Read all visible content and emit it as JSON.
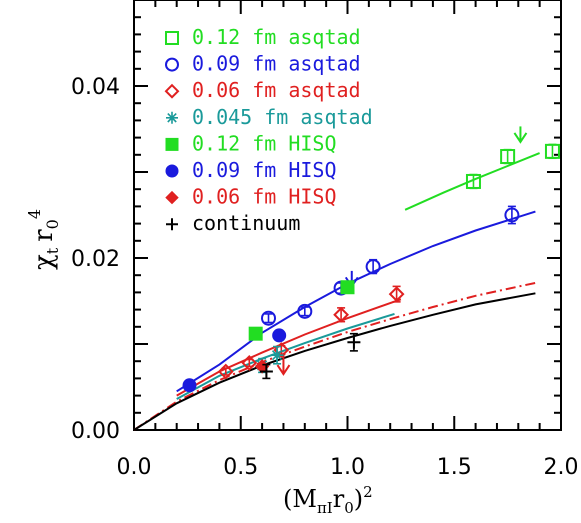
{
  "chart_data": {
    "type": "scatter",
    "xlabel": "(M_{πI} r_0)^2",
    "ylabel": "χ_t r_0^4",
    "xlim": [
      0.0,
      2.0
    ],
    "ylim": [
      0.0,
      0.05
    ],
    "x_ticks": [
      "0.0",
      "0.5",
      "1.0",
      "1.5",
      "2.0"
    ],
    "y_ticks": [
      "0.00",
      "0.02",
      "0.04"
    ],
    "x_tick_values": [
      0.0,
      0.5,
      1.0,
      1.5,
      2.0
    ],
    "y_tick_values": [
      0.0,
      0.02,
      0.04
    ],
    "legend_position": "top-left",
    "series": [
      {
        "name": "0.12 fm asqtad",
        "color": "#22dd22",
        "marker": "open-square",
        "x": [
          1.59,
          1.75,
          1.96
        ],
        "y": [
          0.0289,
          0.0318,
          0.0324
        ],
        "err": [
          0.0008,
          0.0008,
          0.0008
        ]
      },
      {
        "name": "0.09 fm asqtad",
        "color": "#1a1add",
        "marker": "open-circle",
        "x": [
          0.63,
          0.8,
          0.97,
          1.12,
          1.77
        ],
        "y": [
          0.013,
          0.0138,
          0.0165,
          0.019,
          0.025
        ],
        "err": [
          0.0005,
          0.0005,
          0.0006,
          0.0008,
          0.001
        ]
      },
      {
        "name": "0.06 fm asqtad",
        "color": "#e02020",
        "marker": "open-diamond",
        "x": [
          0.43,
          0.54,
          0.69,
          0.97,
          1.23
        ],
        "y": [
          0.0068,
          0.0078,
          0.0093,
          0.0134,
          0.0158
        ],
        "err": [
          0.0004,
          0.0004,
          0.0005,
          0.0008,
          0.0009
        ]
      },
      {
        "name": "0.045 fm asqtad",
        "color": "#1a9a9a",
        "marker": "star",
        "x": [
          0.6,
          0.67
        ],
        "y": [
          0.0075,
          0.0087
        ],
        "err": [
          0.0008,
          0.001
        ]
      },
      {
        "name": "0.12 fm HISQ",
        "color": "#22dd22",
        "marker": "filled-square",
        "x": [
          0.57,
          1.0
        ],
        "y": [
          0.0112,
          0.0166
        ],
        "err": [
          0.0003,
          0.0004
        ]
      },
      {
        "name": "0.09 fm HISQ",
        "color": "#1a1add",
        "marker": "filled-circle",
        "x": [
          0.26,
          0.68
        ],
        "y": [
          0.0052,
          0.011
        ],
        "err": [
          0.0002,
          0.0003
        ]
      },
      {
        "name": "0.06 fm HISQ",
        "color": "#e02020",
        "marker": "filled-diamond",
        "x": [
          0.6
        ],
        "y": [
          0.0074
        ],
        "err": [
          0.0003
        ]
      },
      {
        "name": "continuum",
        "color": "#000000",
        "marker": "plus",
        "x": [
          0.62,
          1.03
        ],
        "y": [
          0.0068,
          0.0102
        ],
        "err": [
          0.0008,
          0.001
        ]
      }
    ],
    "fit_curves": [
      {
        "color": "#22dd22",
        "style": "solid",
        "x": [
          1.27,
          1.45,
          1.6,
          1.75,
          1.9
        ],
        "y": [
          0.0256,
          0.0276,
          0.0292,
          0.0307,
          0.0322
        ]
      },
      {
        "color": "#1a1add",
        "style": "solid",
        "x": [
          0.2,
          0.4,
          0.6,
          0.8,
          1.0,
          1.2,
          1.4,
          1.6,
          1.88
        ],
        "y": [
          0.0045,
          0.0076,
          0.0113,
          0.0143,
          0.017,
          0.0193,
          0.0214,
          0.0232,
          0.0254
        ]
      },
      {
        "color": "#e02020",
        "style": "solid",
        "x": [
          0.2,
          0.4,
          0.6,
          0.8,
          1.0,
          1.25
        ],
        "y": [
          0.004,
          0.0068,
          0.009,
          0.0111,
          0.013,
          0.0152
        ]
      },
      {
        "color": "#1a9a9a",
        "style": "solid",
        "x": [
          0.2,
          0.4,
          0.6,
          0.8,
          1.0,
          1.22
        ],
        "y": [
          0.0036,
          0.0063,
          0.0083,
          0.0101,
          0.0118,
          0.0135
        ]
      },
      {
        "color": "#e02020",
        "style": "dashdot",
        "x": [
          0.0,
          0.2,
          0.4,
          0.6,
          0.8,
          1.0,
          1.2,
          1.4,
          1.6,
          1.88
        ],
        "y": [
          0.0,
          0.0033,
          0.0058,
          0.0079,
          0.0097,
          0.0114,
          0.0129,
          0.0143,
          0.0156,
          0.0171
        ]
      },
      {
        "color": "#000000",
        "style": "solid",
        "x": [
          0.0,
          0.2,
          0.4,
          0.6,
          0.8,
          1.0,
          1.2,
          1.4,
          1.6,
          1.88
        ],
        "y": [
          0.0,
          0.0031,
          0.0055,
          0.0075,
          0.0092,
          0.0107,
          0.0121,
          0.0134,
          0.0146,
          0.0159
        ]
      }
    ],
    "arrows": [
      {
        "color": "#22dd22",
        "x": 1.81,
        "y_from": 0.0353,
        "y_to": 0.0335
      },
      {
        "color": "#1a1add",
        "x": 1.02,
        "y_from": 0.0185,
        "y_to": 0.0167
      },
      {
        "color": "#e02020",
        "x": 0.7,
        "y_from": 0.009,
        "y_to": 0.0065
      }
    ]
  }
}
